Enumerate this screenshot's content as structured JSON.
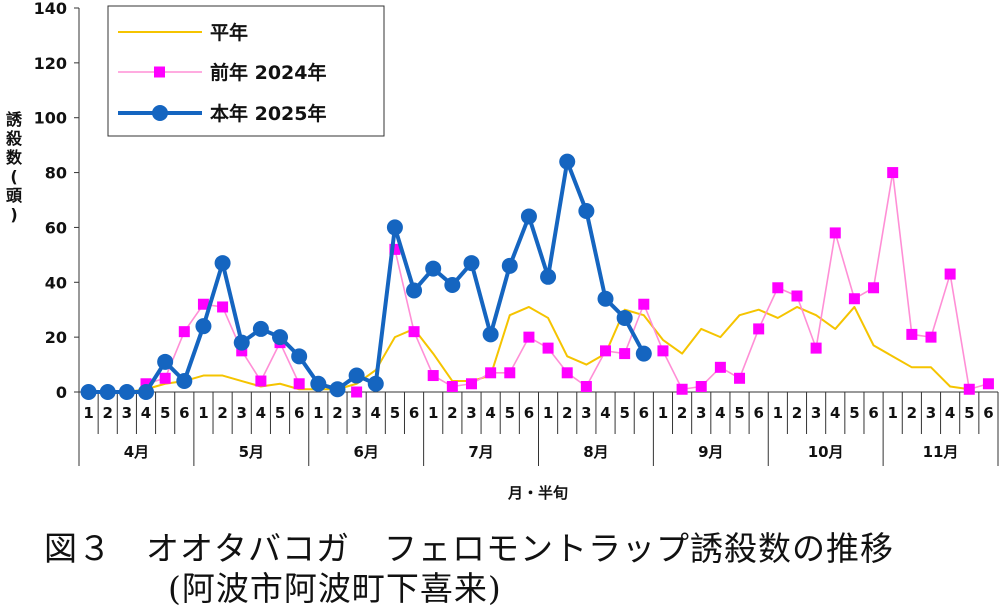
{
  "caption": {
    "title": "図３　オオタバコガ　フェロモントラップ誘殺数の推移",
    "subtitle": "(阿波市阿波町下喜来)"
  },
  "colors": {
    "normal": "#f5c400",
    "y2024": "#ff8fd6",
    "y2024_marker": "#ff00ff",
    "y2025": "#1565c0"
  },
  "chart_data": {
    "type": "line",
    "ylabel": "誘殺数(頭)",
    "xlabel": "月・半旬",
    "ylim": [
      0,
      140
    ],
    "yticks": [
      "0",
      "20",
      "40",
      "60",
      "80",
      "100",
      "120",
      "140"
    ],
    "grid": false,
    "legend_position": "top-left",
    "months": [
      "4月",
      "5月",
      "6月",
      "7月",
      "8月",
      "9月",
      "10月",
      "11月"
    ],
    "x": [
      "1",
      "2",
      "3",
      "4",
      "5",
      "6",
      "1",
      "2",
      "3",
      "4",
      "5",
      "6",
      "1",
      "2",
      "3",
      "4",
      "5",
      "6",
      "1",
      "2",
      "3",
      "4",
      "5",
      "6",
      "1",
      "2",
      "3",
      "4",
      "5",
      "6",
      "1",
      "2",
      "3",
      "4",
      "5",
      "6",
      "1",
      "2",
      "3",
      "4",
      "5",
      "6",
      "1",
      "2",
      "3",
      "4",
      "5",
      "6"
    ],
    "series": [
      {
        "name": "平年",
        "values": [
          0,
          0,
          0,
          1,
          3,
          4,
          6,
          6,
          4,
          2,
          3,
          1,
          1,
          1,
          3,
          8,
          20,
          23,
          14,
          4,
          4,
          6,
          28,
          31,
          27,
          13,
          10,
          14,
          30,
          28,
          19,
          14,
          23,
          20,
          28,
          30,
          27,
          31,
          28,
          23,
          31,
          17,
          13,
          9,
          9,
          2,
          1,
          null
        ]
      },
      {
        "name": "前年 2024年",
        "values": [
          null,
          null,
          null,
          3,
          5,
          22,
          32,
          31,
          15,
          4,
          18,
          3,
          null,
          null,
          0,
          null,
          52,
          22,
          6,
          2,
          3,
          7,
          7,
          20,
          16,
          7,
          2,
          15,
          14,
          32,
          15,
          1,
          2,
          9,
          5,
          23,
          38,
          35,
          16,
          58,
          34,
          38,
          80,
          21,
          20,
          43,
          1,
          3
        ]
      },
      {
        "name": "本年 2025年",
        "values": [
          0,
          0,
          0,
          0,
          11,
          4,
          24,
          47,
          18,
          23,
          20,
          13,
          3,
          1,
          6,
          3,
          60,
          37,
          45,
          39,
          47,
          21,
          46,
          64,
          42,
          84,
          66,
          34,
          27,
          14,
          null,
          null,
          null,
          null,
          null,
          null,
          null,
          null,
          null,
          null,
          null,
          null,
          null,
          null,
          null,
          null,
          null,
          null
        ]
      }
    ]
  }
}
